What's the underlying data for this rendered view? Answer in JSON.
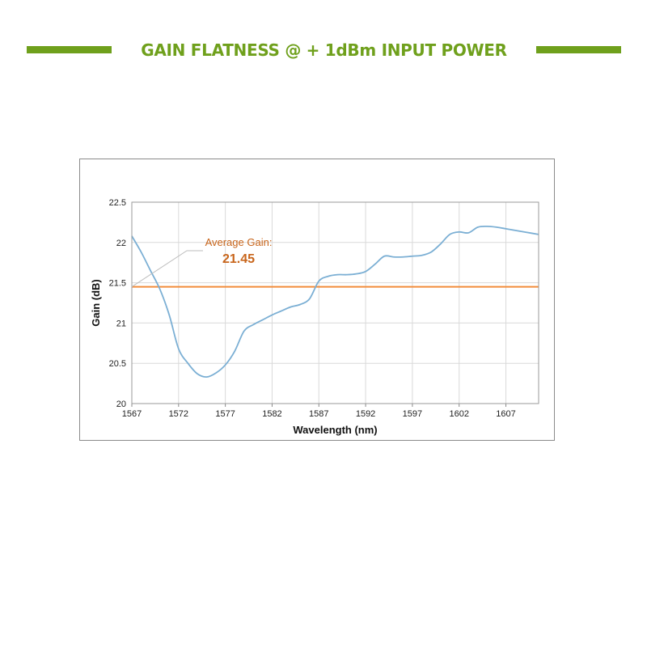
{
  "header": {
    "title": "GAIN FLATNESS @ + 1dBm INPUT POWER",
    "accent_color": "#6fa01c"
  },
  "chart_data": {
    "type": "line",
    "title": "",
    "xlabel": "Wavelength (nm)",
    "ylabel": "Gain (dB)",
    "xlim": [
      1567,
      1610.5
    ],
    "ylim": [
      20,
      22.5
    ],
    "x_ticks": [
      1567,
      1572,
      1577,
      1582,
      1587,
      1592,
      1597,
      1602,
      1607
    ],
    "y_ticks": [
      20,
      20.5,
      21,
      21.5,
      22,
      22.5
    ],
    "y_tick_labels": [
      "20",
      "20.5",
      "21",
      "21.5",
      "22",
      "22.5"
    ],
    "grid": true,
    "legend": "none",
    "series": [
      {
        "color": "#7bafd4",
        "points": [
          [
            1567.0,
            22.08
          ],
          [
            1568.0,
            21.88
          ],
          [
            1569.0,
            21.65
          ],
          [
            1570.0,
            21.42
          ],
          [
            1571.0,
            21.1
          ],
          [
            1572.0,
            20.68
          ],
          [
            1573.0,
            20.5
          ],
          [
            1574.0,
            20.37
          ],
          [
            1575.0,
            20.33
          ],
          [
            1576.0,
            20.38
          ],
          [
            1577.0,
            20.48
          ],
          [
            1578.0,
            20.65
          ],
          [
            1579.0,
            20.9
          ],
          [
            1580.0,
            20.98
          ],
          [
            1581.0,
            21.04
          ],
          [
            1582.0,
            21.1
          ],
          [
            1583.0,
            21.15
          ],
          [
            1584.0,
            21.2
          ],
          [
            1585.0,
            21.23
          ],
          [
            1586.0,
            21.3
          ],
          [
            1587.0,
            21.52
          ],
          [
            1588.0,
            21.58
          ],
          [
            1589.0,
            21.6
          ],
          [
            1590.0,
            21.6
          ],
          [
            1591.0,
            21.61
          ],
          [
            1592.0,
            21.64
          ],
          [
            1593.0,
            21.73
          ],
          [
            1594.0,
            21.83
          ],
          [
            1595.0,
            21.82
          ],
          [
            1596.0,
            21.82
          ],
          [
            1597.0,
            21.83
          ],
          [
            1598.0,
            21.84
          ],
          [
            1599.0,
            21.88
          ],
          [
            1600.0,
            21.98
          ],
          [
            1601.0,
            22.1
          ],
          [
            1602.0,
            22.13
          ],
          [
            1603.0,
            22.12
          ],
          [
            1604.0,
            22.19
          ],
          [
            1605.0,
            22.2
          ],
          [
            1606.0,
            22.19
          ],
          [
            1607.0,
            22.17
          ],
          [
            1608.0,
            22.15
          ],
          [
            1609.0,
            22.13
          ],
          [
            1610.5,
            22.1
          ]
        ]
      }
    ],
    "reference_line": {
      "value": 21.45,
      "color": "#f28c3a"
    },
    "annotation": {
      "label": "Average Gain:",
      "value": "21.45",
      "color": "#c8651b"
    }
  }
}
